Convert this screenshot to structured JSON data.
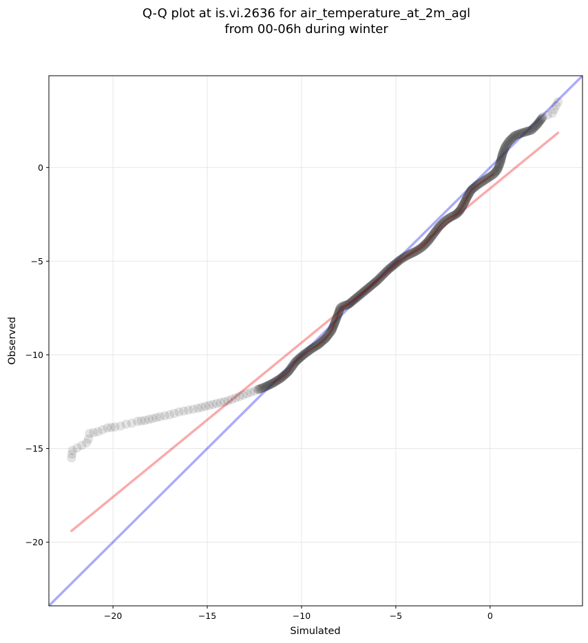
{
  "chart_data": {
    "type": "scatter",
    "title": "Q-Q plot at is.vi.2636 for air_temperature_at_2m_agl",
    "subtitle": "from 00-06h during winter",
    "xlabel": "Simulated",
    "ylabel": "Observed",
    "xlim": [
      -23.4,
      4.9
    ],
    "ylim": [
      -23.4,
      4.9
    ],
    "xticks": [
      -20,
      -15,
      -10,
      -5,
      0
    ],
    "yticks": [
      0,
      -5,
      -10,
      -15,
      -20
    ],
    "tick_labels": {
      "x": [
        "−20",
        "−15",
        "−10",
        "−5",
        "0"
      ],
      "y": [
        "0",
        "−5",
        "−10",
        "−15",
        "−20"
      ]
    },
    "grid": true,
    "quantile_points": [
      [
        -22.2,
        -15.5
      ],
      [
        -22.15,
        -15.1
      ],
      [
        -21.4,
        -14.7
      ],
      [
        -21.3,
        -14.5
      ],
      [
        -21.25,
        -14.2
      ],
      [
        -20.8,
        -14.1
      ],
      [
        -20.3,
        -13.9
      ],
      [
        -19.9,
        -13.85
      ],
      [
        -19.6,
        -13.8
      ],
      [
        -19.3,
        -13.7
      ],
      [
        -19.0,
        -13.65
      ],
      [
        -18.7,
        -13.55
      ],
      [
        -18.3,
        -13.5
      ],
      [
        -17.9,
        -13.4
      ],
      [
        -17.5,
        -13.3
      ],
      [
        -17.0,
        -13.2
      ],
      [
        -16.5,
        -13.05
      ],
      [
        -16.0,
        -12.95
      ],
      [
        -15.5,
        -12.85
      ],
      [
        -15.1,
        -12.75
      ],
      [
        -14.7,
        -12.65
      ],
      [
        -14.3,
        -12.55
      ],
      [
        -13.9,
        -12.45
      ],
      [
        -13.5,
        -12.3
      ],
      [
        -13.1,
        -12.15
      ],
      [
        -12.7,
        -12.0
      ],
      [
        -12.3,
        -11.85
      ],
      [
        -11.9,
        -11.7
      ],
      [
        -11.5,
        -11.5
      ],
      [
        -11.1,
        -11.25
      ],
      [
        -10.7,
        -10.9
      ],
      [
        -10.3,
        -10.35
      ],
      [
        -9.9,
        -10.0
      ],
      [
        -9.5,
        -9.7
      ],
      [
        -9.1,
        -9.45
      ],
      [
        -8.7,
        -9.1
      ],
      [
        -8.4,
        -8.7
      ],
      [
        -8.2,
        -8.2
      ],
      [
        -8.05,
        -7.8
      ],
      [
        -7.95,
        -7.5
      ],
      [
        -7.8,
        -7.4
      ],
      [
        -7.5,
        -7.3
      ],
      [
        -7.2,
        -7.05
      ],
      [
        -6.9,
        -6.8
      ],
      [
        -6.6,
        -6.55
      ],
      [
        -6.3,
        -6.3
      ],
      [
        -6.0,
        -6.05
      ],
      [
        -5.7,
        -5.75
      ],
      [
        -5.4,
        -5.45
      ],
      [
        -5.1,
        -5.2
      ],
      [
        -4.8,
        -4.95
      ],
      [
        -4.5,
        -4.75
      ],
      [
        -4.2,
        -4.6
      ],
      [
        -3.9,
        -4.45
      ],
      [
        -3.6,
        -4.25
      ],
      [
        -3.3,
        -3.95
      ],
      [
        -3.0,
        -3.55
      ],
      [
        -2.7,
        -3.15
      ],
      [
        -2.4,
        -2.85
      ],
      [
        -2.1,
        -2.65
      ],
      [
        -1.8,
        -2.5
      ],
      [
        -1.6,
        -2.3
      ],
      [
        -1.4,
        -1.95
      ],
      [
        -1.2,
        -1.55
      ],
      [
        -1.0,
        -1.2
      ],
      [
        -0.7,
        -0.95
      ],
      [
        -0.4,
        -0.75
      ],
      [
        -0.1,
        -0.55
      ],
      [
        0.2,
        -0.35
      ],
      [
        0.4,
        -0.1
      ],
      [
        0.55,
        0.3
      ],
      [
        0.65,
        0.7
      ],
      [
        0.8,
        1.1
      ],
      [
        1.0,
        1.4
      ],
      [
        1.3,
        1.7
      ],
      [
        1.7,
        1.85
      ],
      [
        2.2,
        2.0
      ],
      [
        2.5,
        2.3
      ],
      [
        2.8,
        2.7
      ],
      [
        3.3,
        2.9
      ],
      [
        3.6,
        3.5
      ]
    ],
    "lines": [
      {
        "kind": "one-to-one",
        "color": "#0000ee",
        "opacity": 0.33,
        "from": [
          -23.4,
          -23.4
        ],
        "to": [
          4.9,
          4.9
        ]
      },
      {
        "kind": "fit",
        "color": "#ee0000",
        "opacity": 0.33,
        "from": [
          -22.2,
          -19.4
        ],
        "to": [
          3.6,
          1.85
        ]
      }
    ],
    "colors": {
      "points": "#333333",
      "core_line": "#8b1a10"
    }
  }
}
